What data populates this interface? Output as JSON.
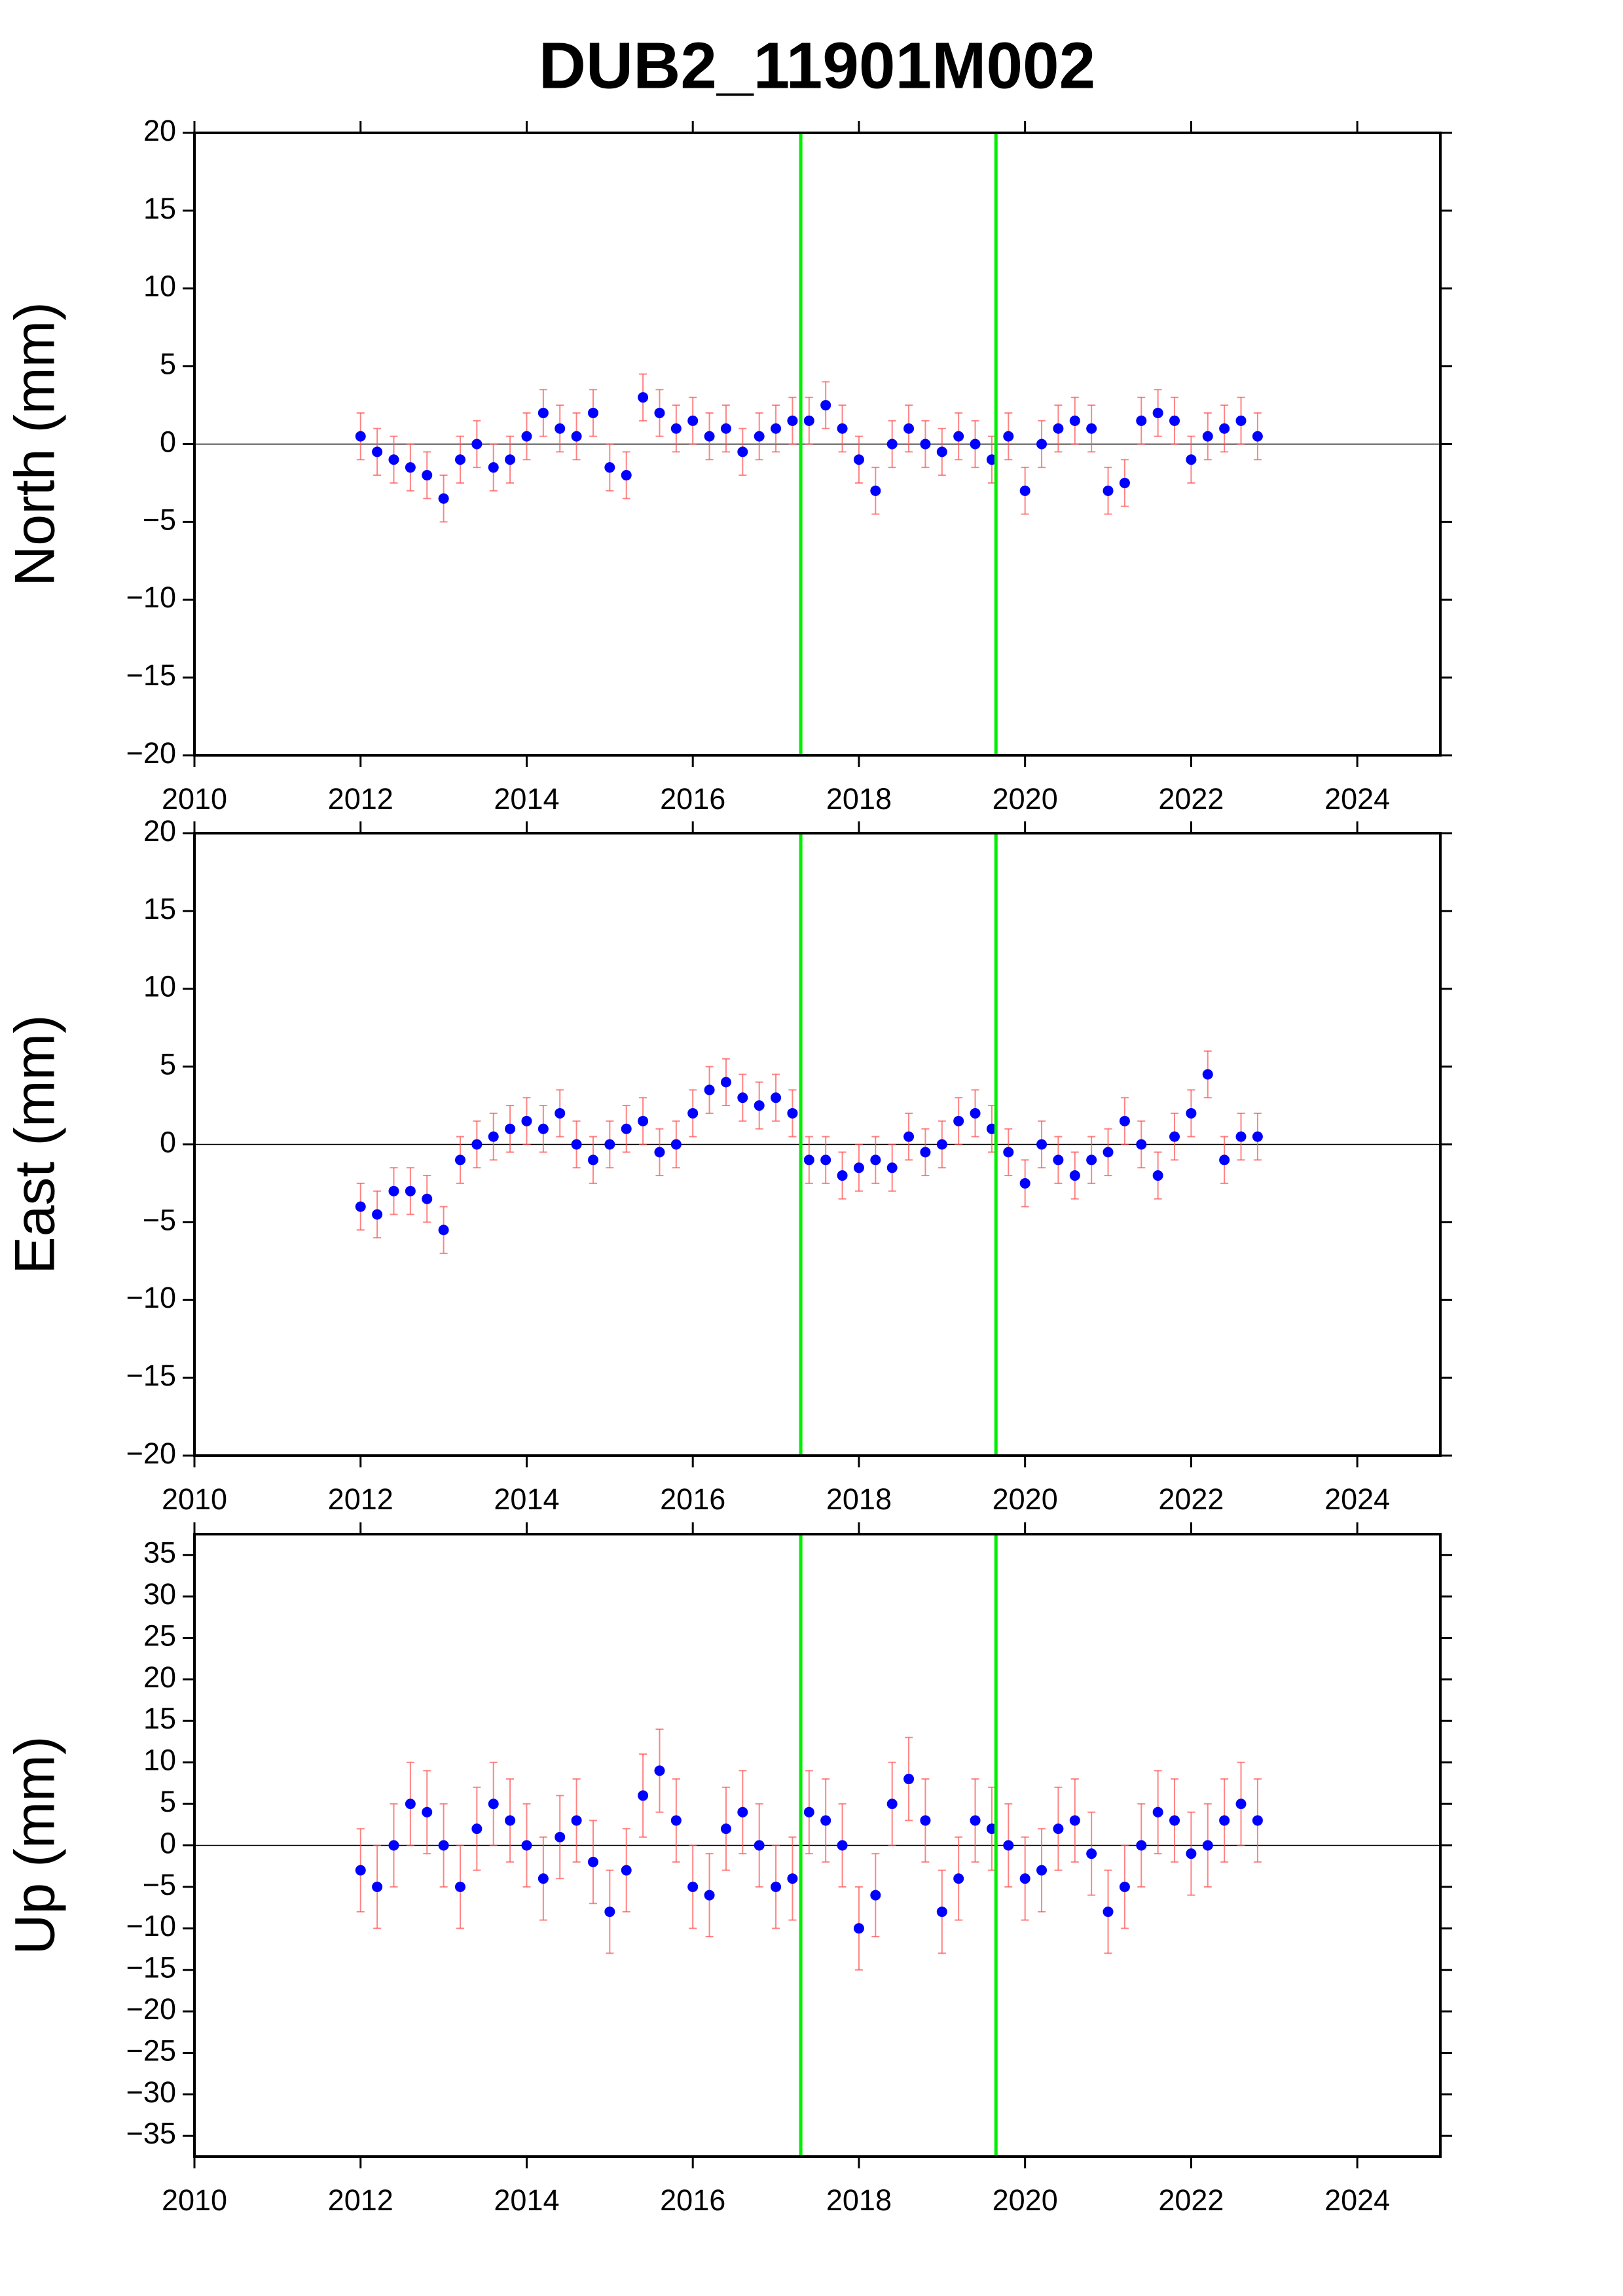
{
  "chart_data": [
    {
      "type": "scatter",
      "title": "DUB2_11901M002",
      "ylabel": "North (mm)",
      "x": [
        2012.0,
        2012.2,
        2012.4,
        2012.6,
        2012.8,
        2013.0,
        2013.2,
        2013.4,
        2013.6,
        2013.8,
        2014.0,
        2014.2,
        2014.4,
        2014.6,
        2014.8,
        2015.0,
        2015.2,
        2015.4,
        2015.6,
        2015.8,
        2016.0,
        2016.2,
        2016.4,
        2016.6,
        2016.8,
        2017.0,
        2017.2,
        2017.4,
        2017.6,
        2017.8,
        2018.0,
        2018.2,
        2018.4,
        2018.6,
        2018.8,
        2019.0,
        2019.2,
        2019.4,
        2019.6,
        2019.8,
        2020.0,
        2020.2,
        2020.4,
        2020.6,
        2020.8,
        2021.0,
        2021.2,
        2021.4,
        2021.6,
        2021.8,
        2022.0,
        2022.2,
        2022.4,
        2022.6,
        2022.8
      ],
      "values": [
        0.5,
        -0.5,
        -1,
        -1.5,
        -2,
        -3.5,
        -1,
        0,
        -1.5,
        -1,
        0.5,
        2,
        1,
        0.5,
        2,
        -1.5,
        -2,
        3,
        2,
        1,
        1.5,
        0.5,
        1,
        -0.5,
        0.5,
        1,
        1.5,
        1.5,
        2.5,
        1,
        -1,
        -3,
        0,
        1,
        0,
        -0.5,
        0.5,
        0,
        -1,
        0.5,
        -3,
        0,
        1,
        1.5,
        1,
        -3,
        -2.5,
        1.5,
        2,
        1.5,
        -1,
        0.5,
        1,
        1.5,
        0.5
      ],
      "error": 1.5,
      "color": "#0000ff",
      "error_color": "#ff5050",
      "xlim": [
        2010,
        2025
      ],
      "xticks": [
        2010,
        2012,
        2014,
        2016,
        2018,
        2020,
        2022,
        2024
      ],
      "ylim": [
        -20,
        20
      ],
      "yticks": [
        {
          "value": -20,
          "label": "−20"
        },
        {
          "value": -15,
          "label": "−15"
        },
        {
          "value": -10,
          "label": "−10"
        },
        {
          "value": -5,
          "label": "−5"
        },
        0,
        5,
        10,
        15,
        20
      ],
      "hline": 0,
      "vlines": [
        2017.3,
        2019.65
      ],
      "vline_color": "#00ee00"
    },
    {
      "type": "scatter",
      "ylabel": "East (mm)",
      "x": [
        2012.0,
        2012.2,
        2012.4,
        2012.6,
        2012.8,
        2013.0,
        2013.2,
        2013.4,
        2013.6,
        2013.8,
        2014.0,
        2014.2,
        2014.4,
        2014.6,
        2014.8,
        2015.0,
        2015.2,
        2015.4,
        2015.6,
        2015.8,
        2016.0,
        2016.2,
        2016.4,
        2016.6,
        2016.8,
        2017.0,
        2017.2,
        2017.4,
        2017.6,
        2017.8,
        2018.0,
        2018.2,
        2018.4,
        2018.6,
        2018.8,
        2019.0,
        2019.2,
        2019.4,
        2019.6,
        2019.8,
        2020.0,
        2020.2,
        2020.4,
        2020.6,
        2020.8,
        2021.0,
        2021.2,
        2021.4,
        2021.6,
        2021.8,
        2022.0,
        2022.2,
        2022.4,
        2022.6,
        2022.8
      ],
      "values": [
        -4,
        -4.5,
        -3,
        -3,
        -3.5,
        -5.5,
        -1,
        0,
        0.5,
        1,
        1.5,
        1,
        2,
        0,
        -1,
        0,
        1,
        1.5,
        -0.5,
        0,
        2,
        3.5,
        4,
        3,
        2.5,
        3,
        2,
        -1,
        -1,
        -2,
        -1.5,
        -1,
        -1.5,
        0.5,
        -0.5,
        0,
        1.5,
        2,
        1,
        -0.5,
        -2.5,
        0,
        -1,
        -2,
        -1,
        -0.5,
        1.5,
        0,
        -2,
        0.5,
        2,
        4.5,
        -1,
        0.5,
        0.5
      ],
      "error": 1.5,
      "color": "#0000ff",
      "error_color": "#ff5050",
      "xlim": [
        2010,
        2025
      ],
      "xticks": [
        2010,
        2012,
        2014,
        2016,
        2018,
        2020,
        2022,
        2024
      ],
      "ylim": [
        -20,
        20
      ],
      "yticks": [
        {
          "value": -20,
          "label": "−20"
        },
        {
          "value": -15,
          "label": "−15"
        },
        {
          "value": -10,
          "label": "−10"
        },
        {
          "value": -5,
          "label": "−5"
        },
        0,
        5,
        10,
        15,
        20
      ],
      "hline": 0,
      "vlines": [
        2017.3,
        2019.65
      ],
      "vline_color": "#00ee00"
    },
    {
      "type": "scatter",
      "ylabel": "Up (mm)",
      "x": [
        2012.0,
        2012.2,
        2012.4,
        2012.6,
        2012.8,
        2013.0,
        2013.2,
        2013.4,
        2013.6,
        2013.8,
        2014.0,
        2014.2,
        2014.4,
        2014.6,
        2014.8,
        2015.0,
        2015.2,
        2015.4,
        2015.6,
        2015.8,
        2016.0,
        2016.2,
        2016.4,
        2016.6,
        2016.8,
        2017.0,
        2017.2,
        2017.4,
        2017.6,
        2017.8,
        2018.0,
        2018.2,
        2018.4,
        2018.6,
        2018.8,
        2019.0,
        2019.2,
        2019.4,
        2019.6,
        2019.8,
        2020.0,
        2020.2,
        2020.4,
        2020.6,
        2020.8,
        2021.0,
        2021.2,
        2021.4,
        2021.6,
        2021.8,
        2022.0,
        2022.2,
        2022.4,
        2022.6,
        2022.8
      ],
      "values": [
        -3,
        -5,
        0,
        5,
        4,
        0,
        -5,
        2,
        5,
        3,
        0,
        -4,
        1,
        3,
        -2,
        -8,
        -3,
        6,
        9,
        3,
        -5,
        -6,
        2,
        4,
        0,
        -5,
        -4,
        4,
        3,
        0,
        -10,
        -6,
        5,
        8,
        3,
        -8,
        -4,
        3,
        2,
        0,
        -4,
        -3,
        2,
        3,
        -1,
        -8,
        -5,
        0,
        4,
        3,
        -1,
        0,
        3,
        5,
        3
      ],
      "error": 5,
      "color": "#0000ff",
      "error_color": "#ff5050",
      "xlim": [
        2010,
        2025
      ],
      "xticks": [
        2010,
        2012,
        2014,
        2016,
        2018,
        2020,
        2022,
        2024
      ],
      "ylim": [
        -37.5,
        37.5
      ],
      "yticks": [
        {
          "value": -35,
          "label": "−35"
        },
        {
          "value": -30,
          "label": "−30"
        },
        {
          "value": -25,
          "label": "−25"
        },
        {
          "value": -20,
          "label": "−20"
        },
        {
          "value": -15,
          "label": "−15"
        },
        {
          "value": -10,
          "label": "−10"
        },
        {
          "value": -5,
          "label": "−5"
        },
        0,
        5,
        10,
        15,
        20,
        25,
        30,
        35
      ],
      "hline": 0,
      "vlines": [
        2017.3,
        2019.65
      ],
      "vline_color": "#00ee00"
    }
  ]
}
